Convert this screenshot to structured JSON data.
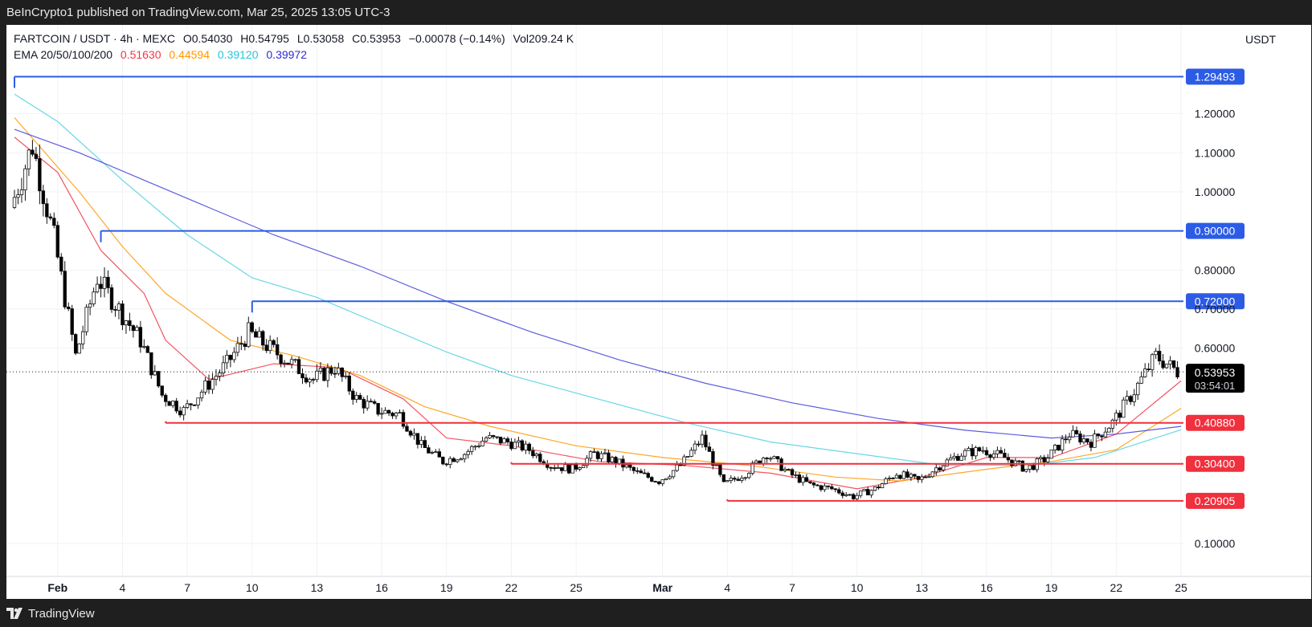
{
  "header": {
    "published": "BeInCrypto1 published on TradingView.com, Mar 25, 2025 13:05 UTC-3"
  },
  "footer": {
    "brand": "TradingView"
  },
  "legend": {
    "symbol": "FARTCOIN / USDT · 4h · MEXC",
    "open": "O0.54030",
    "high": "H0.54795",
    "low": "L0.53058",
    "close": "C0.53953",
    "change": "−0.00078 (−0.14%)",
    "volume": "Vol209.24 K",
    "ema_label": "EMA 20/50/100/200",
    "ema20": "0.51630",
    "ema50": "0.44594",
    "ema100": "0.39120",
    "ema200": "0.39972"
  },
  "currency": "USDT",
  "colors": {
    "ema20": "#f23645",
    "ema50": "#ff9800",
    "ema100": "#4dd0e1",
    "ema200": "#3f3fd9",
    "resistance": "#2c5ce6",
    "support": "#f0303d",
    "candle_up": "#ffffff",
    "candle_down": "#000000"
  },
  "chart_data": {
    "type": "candlestick",
    "title": "FARTCOIN / USDT · 4h · MEXC",
    "y_ticks": [
      "1.20000",
      "1.10000",
      "1.00000",
      "0.80000",
      "0.70000",
      "0.60000",
      "0.10000"
    ],
    "x_ticks": [
      "Feb",
      "4",
      "7",
      "10",
      "13",
      "16",
      "19",
      "22",
      "25",
      "Mar",
      "4",
      "7",
      "10",
      "13",
      "16",
      "19",
      "22",
      "25"
    ],
    "ylim": [
      0.1,
      1.3
    ],
    "x_range": [
      "2025-01-30",
      "2025-03-25"
    ],
    "grid": true,
    "price_levels": [
      {
        "label": "1.29493",
        "value": 1.29493,
        "kind": "resistance",
        "from": "2025-01-30"
      },
      {
        "label": "0.90000",
        "value": 0.9,
        "kind": "resistance",
        "from": "2025-02-03"
      },
      {
        "label": "0.72000",
        "value": 0.72,
        "kind": "resistance",
        "from": "2025-02-10"
      },
      {
        "label": "0.40880",
        "value": 0.4088,
        "kind": "support",
        "from": "2025-02-06"
      },
      {
        "label": "0.30400",
        "value": 0.304,
        "kind": "support",
        "from": "2025-02-22"
      },
      {
        "label": "0.20905",
        "value": 0.20905,
        "kind": "support",
        "from": "2025-03-04"
      }
    ],
    "last_price": {
      "label": "0.53953",
      "value": 0.53953,
      "countdown": "03:54:01"
    },
    "price_path": [
      [
        "2025-01-30",
        0.96
      ],
      [
        "2025-01-31",
        1.12
      ],
      [
        "2025-02-01",
        0.88
      ],
      [
        "2025-02-02",
        0.58
      ],
      [
        "2025-02-03",
        0.78
      ],
      [
        "2025-02-04",
        0.7
      ],
      [
        "2025-02-05",
        0.62
      ],
      [
        "2025-02-06",
        0.48
      ],
      [
        "2025-02-07",
        0.44
      ],
      [
        "2025-02-08",
        0.5
      ],
      [
        "2025-02-09",
        0.56
      ],
      [
        "2025-02-10",
        0.64
      ],
      [
        "2025-02-11",
        0.6
      ],
      [
        "2025-02-12",
        0.56
      ],
      [
        "2025-02-13",
        0.52
      ],
      [
        "2025-02-14",
        0.55
      ],
      [
        "2025-02-15",
        0.47
      ],
      [
        "2025-02-16",
        0.44
      ],
      [
        "2025-02-17",
        0.43
      ],
      [
        "2025-02-18",
        0.35
      ],
      [
        "2025-02-19",
        0.31
      ],
      [
        "2025-02-20",
        0.33
      ],
      [
        "2025-02-21",
        0.37
      ],
      [
        "2025-02-22",
        0.36
      ],
      [
        "2025-02-23",
        0.34
      ],
      [
        "2025-02-24",
        0.3
      ],
      [
        "2025-02-25",
        0.29
      ],
      [
        "2025-02-26",
        0.33
      ],
      [
        "2025-02-27",
        0.31
      ],
      [
        "2025-02-28",
        0.28
      ],
      [
        "2025-03-01",
        0.26
      ],
      [
        "2025-03-02",
        0.3
      ],
      [
        "2025-03-03",
        0.37
      ],
      [
        "2025-03-04",
        0.25
      ],
      [
        "2025-03-05",
        0.28
      ],
      [
        "2025-03-06",
        0.33
      ],
      [
        "2025-03-07",
        0.28
      ],
      [
        "2025-03-08",
        0.25
      ],
      [
        "2025-03-09",
        0.24
      ],
      [
        "2025-03-10",
        0.22
      ],
      [
        "2025-03-11",
        0.24
      ],
      [
        "2025-03-12",
        0.28
      ],
      [
        "2025-03-13",
        0.26
      ],
      [
        "2025-03-14",
        0.3
      ],
      [
        "2025-03-15",
        0.33
      ],
      [
        "2025-03-16",
        0.34
      ],
      [
        "2025-03-17",
        0.32
      ],
      [
        "2025-03-18",
        0.29
      ],
      [
        "2025-03-19",
        0.32
      ],
      [
        "2025-03-20",
        0.38
      ],
      [
        "2025-03-21",
        0.36
      ],
      [
        "2025-03-22",
        0.41
      ],
      [
        "2025-03-23",
        0.49
      ],
      [
        "2025-03-24",
        0.58
      ],
      [
        "2025-03-25",
        0.54
      ]
    ],
    "series": [
      {
        "name": "EMA 20",
        "values": [
          [
            "2025-01-30",
            1.14
          ],
          [
            "2025-02-01",
            1.05
          ],
          [
            "2025-02-03",
            0.85
          ],
          [
            "2025-02-05",
            0.74
          ],
          [
            "2025-02-06",
            0.62
          ],
          [
            "2025-02-08",
            0.52
          ],
          [
            "2025-02-11",
            0.56
          ],
          [
            "2025-02-14",
            0.55
          ],
          [
            "2025-02-17",
            0.47
          ],
          [
            "2025-02-19",
            0.37
          ],
          [
            "2025-02-22",
            0.35
          ],
          [
            "2025-02-26",
            0.31
          ],
          [
            "2025-03-02",
            0.3
          ],
          [
            "2025-03-06",
            0.28
          ],
          [
            "2025-03-10",
            0.24
          ],
          [
            "2025-03-13",
            0.27
          ],
          [
            "2025-03-16",
            0.32
          ],
          [
            "2025-03-19",
            0.32
          ],
          [
            "2025-03-22",
            0.38
          ],
          [
            "2025-03-25",
            0.5163
          ]
        ]
      },
      {
        "name": "EMA 50",
        "values": [
          [
            "2025-01-30",
            1.19
          ],
          [
            "2025-02-02",
            1.0
          ],
          [
            "2025-02-04",
            0.86
          ],
          [
            "2025-02-06",
            0.74
          ],
          [
            "2025-02-09",
            0.62
          ],
          [
            "2025-02-12",
            0.58
          ],
          [
            "2025-02-15",
            0.53
          ],
          [
            "2025-02-18",
            0.45
          ],
          [
            "2025-02-21",
            0.4
          ],
          [
            "2025-02-25",
            0.35
          ],
          [
            "2025-03-01",
            0.32
          ],
          [
            "2025-03-05",
            0.3
          ],
          [
            "2025-03-09",
            0.27
          ],
          [
            "2025-03-12",
            0.26
          ],
          [
            "2025-03-16",
            0.29
          ],
          [
            "2025-03-19",
            0.31
          ],
          [
            "2025-03-22",
            0.34
          ],
          [
            "2025-03-25",
            0.44594
          ]
        ]
      },
      {
        "name": "EMA 100",
        "values": [
          [
            "2025-01-30",
            1.25
          ],
          [
            "2025-02-01",
            1.18
          ],
          [
            "2025-02-04",
            1.03
          ],
          [
            "2025-02-07",
            0.89
          ],
          [
            "2025-02-10",
            0.78
          ],
          [
            "2025-02-13",
            0.73
          ],
          [
            "2025-02-16",
            0.66
          ],
          [
            "2025-02-19",
            0.59
          ],
          [
            "2025-02-22",
            0.53
          ],
          [
            "2025-02-26",
            0.47
          ],
          [
            "2025-03-02",
            0.41
          ],
          [
            "2025-03-06",
            0.36
          ],
          [
            "2025-03-10",
            0.33
          ],
          [
            "2025-03-14",
            0.3
          ],
          [
            "2025-03-18",
            0.3
          ],
          [
            "2025-03-21",
            0.32
          ],
          [
            "2025-03-25",
            0.3912
          ]
        ]
      },
      {
        "name": "EMA 200",
        "values": [
          [
            "2025-01-30",
            1.16
          ],
          [
            "2025-02-02",
            1.1
          ],
          [
            "2025-02-05",
            1.03
          ],
          [
            "2025-02-08",
            0.96
          ],
          [
            "2025-02-11",
            0.89
          ],
          [
            "2025-02-15",
            0.81
          ],
          [
            "2025-02-19",
            0.72
          ],
          [
            "2025-02-23",
            0.64
          ],
          [
            "2025-02-27",
            0.57
          ],
          [
            "2025-03-03",
            0.51
          ],
          [
            "2025-03-07",
            0.46
          ],
          [
            "2025-03-11",
            0.42
          ],
          [
            "2025-03-15",
            0.39
          ],
          [
            "2025-03-19",
            0.37
          ],
          [
            "2025-03-22",
            0.38
          ],
          [
            "2025-03-25",
            0.39972
          ]
        ]
      }
    ]
  }
}
